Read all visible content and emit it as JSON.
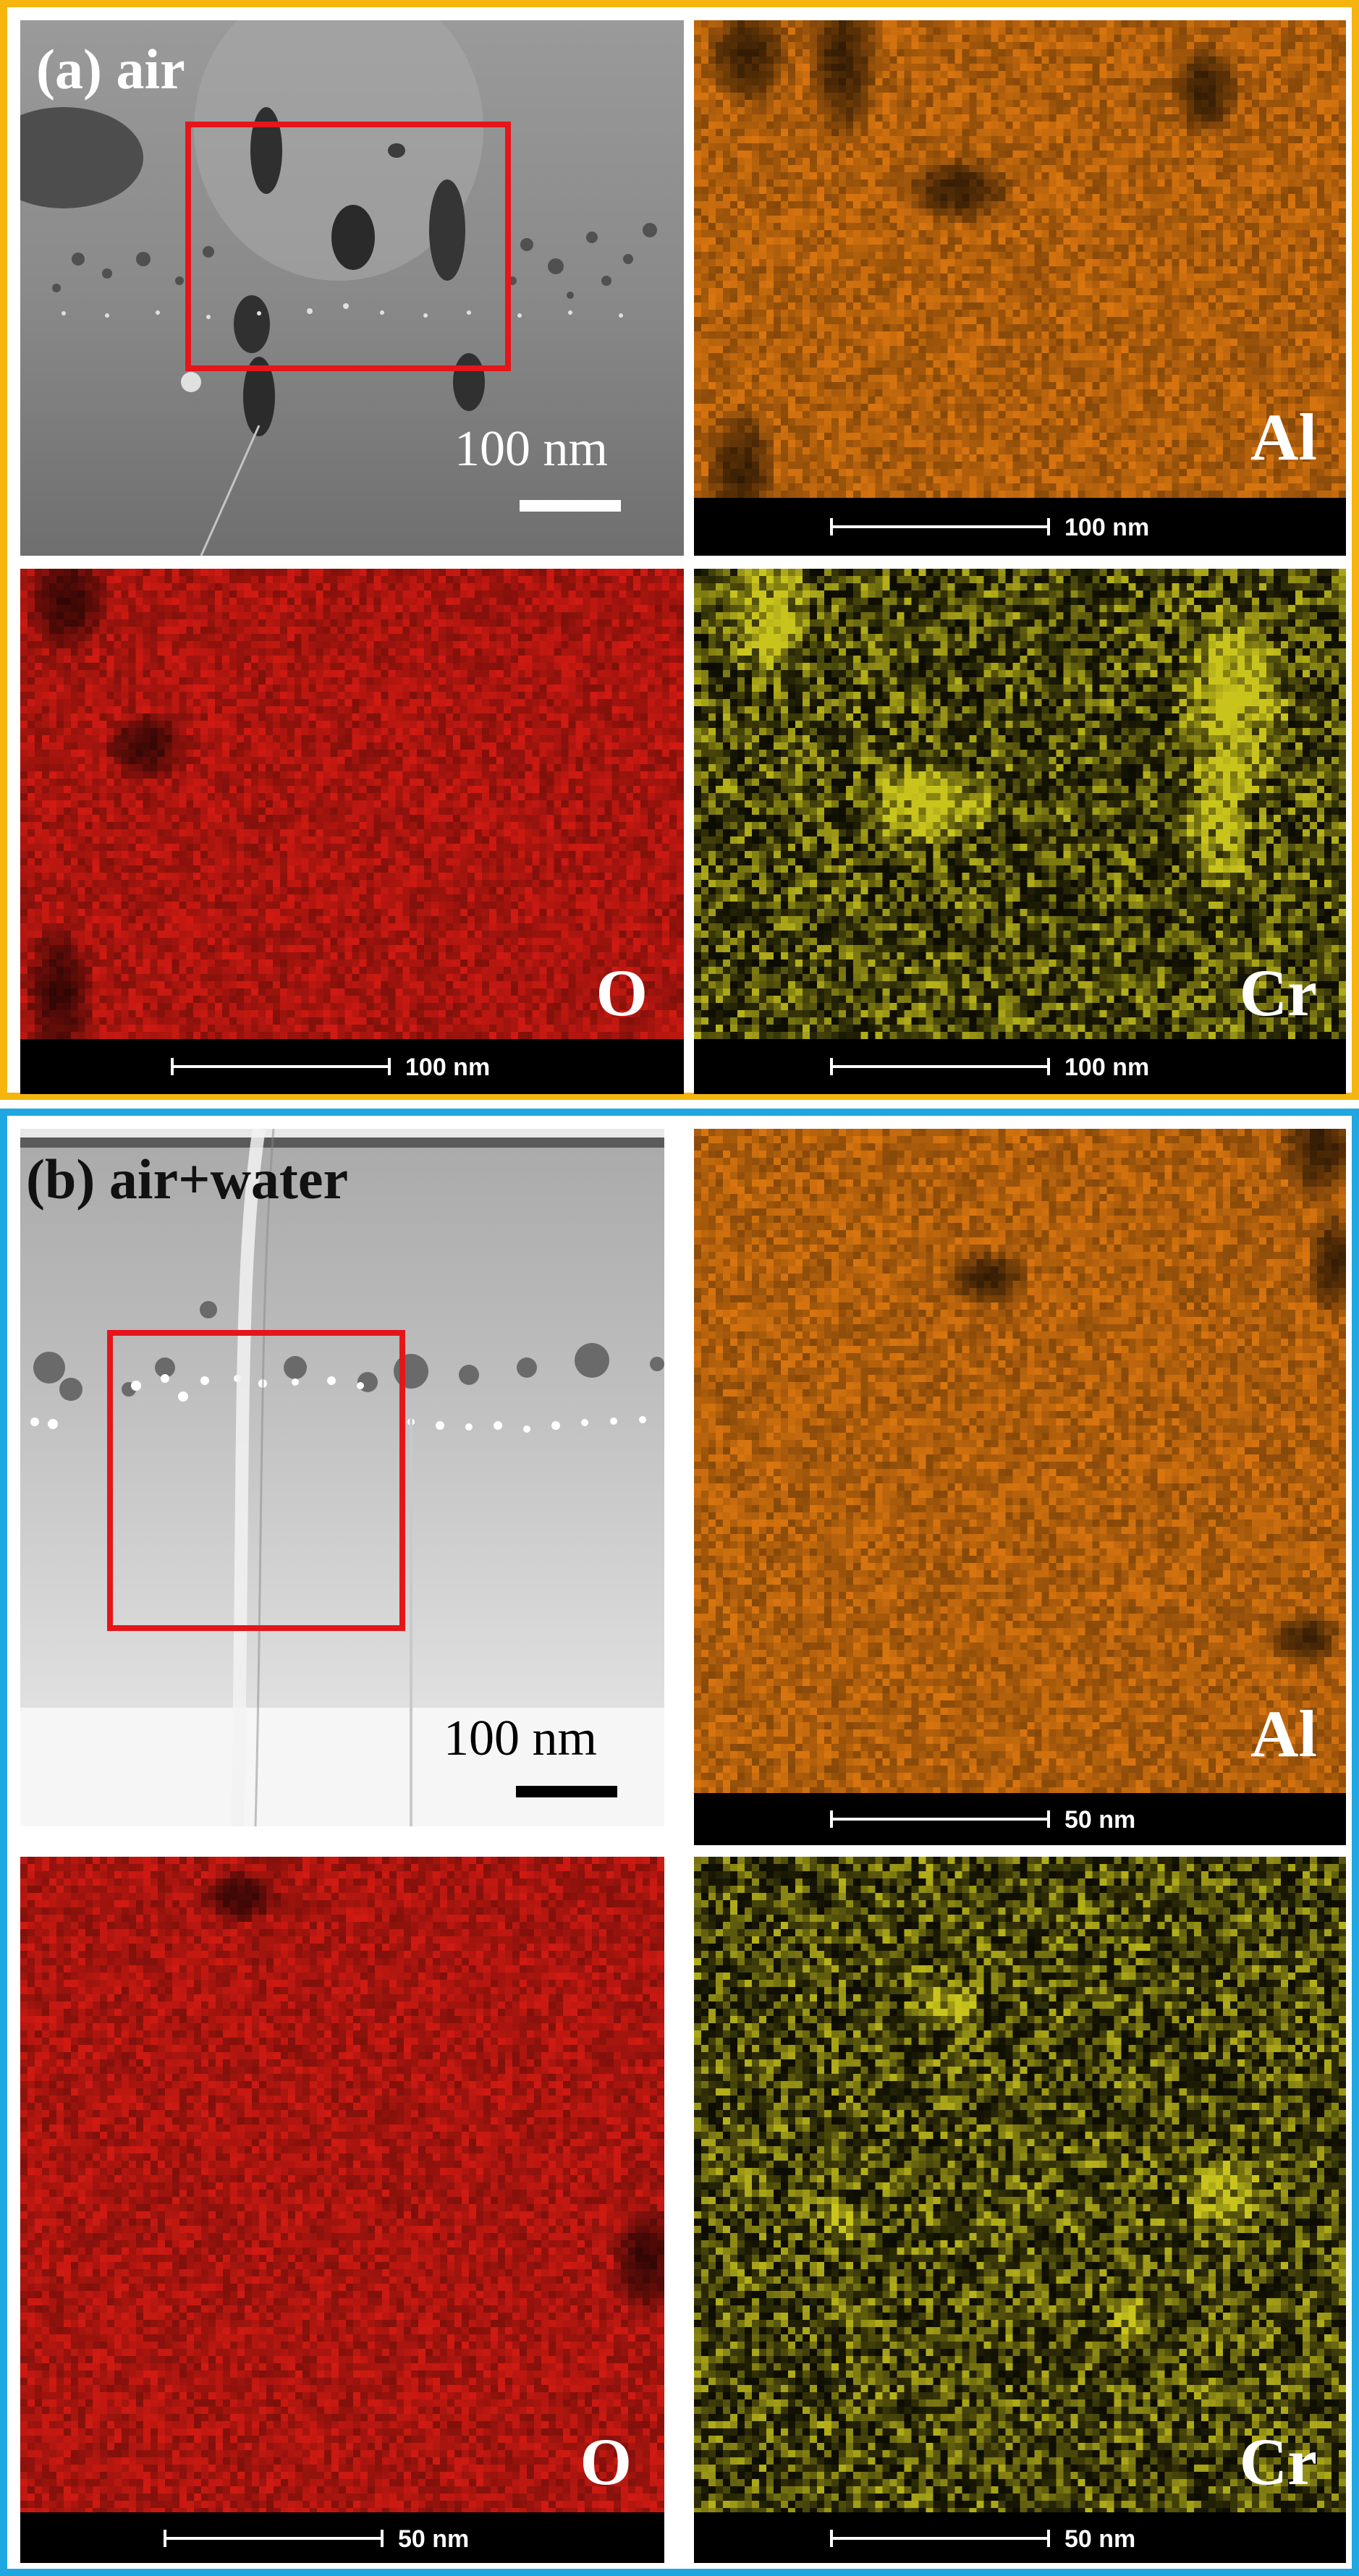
{
  "colors": {
    "panel_a_border": "#f5b50e",
    "panel_b_border": "#1ea7e1",
    "roi_box": "#e4161b",
    "al_map": "#d9750f",
    "o_map": "#d01a12",
    "cr_map": "#c9c41c"
  },
  "panels": [
    {
      "id": "a",
      "label": "(a) air",
      "sem_image": {
        "scale_label": "100 nm",
        "style": "grayscale STEM image with dark precipitates and bright particle band"
      },
      "maps": [
        {
          "element": "Al",
          "scale_label": "100 nm",
          "color": "#d9750f"
        },
        {
          "element": "O",
          "scale_label": "100 nm",
          "color": "#d01a12"
        },
        {
          "element": "Cr",
          "scale_label": "100 nm",
          "color": "#c9c41c"
        }
      ]
    },
    {
      "id": "b",
      "label": "(b) air+water",
      "sem_image": {
        "scale_label": "100 nm",
        "style": "grayscale STEM image with particle band and vertical boundary"
      },
      "maps": [
        {
          "element": "Al",
          "scale_label": "50 nm",
          "color": "#d9750f"
        },
        {
          "element": "O",
          "scale_label": "50 nm",
          "color": "#d01a12"
        },
        {
          "element": "Cr",
          "scale_label": "50 nm",
          "color": "#c9c41c"
        }
      ]
    }
  ]
}
